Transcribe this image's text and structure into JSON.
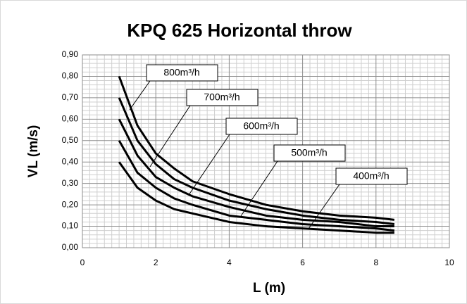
{
  "chart_data": {
    "type": "line",
    "title": "KPQ 625 Horizontal throw",
    "x_label": "L (m)",
    "y_label": "VL (m/s)",
    "x": [
      1,
      1.5,
      2,
      2.5,
      3,
      4,
      5,
      6,
      7,
      8,
      8.5
    ],
    "series": [
      {
        "name": "800m³/h",
        "color": "#000000",
        "values": [
          0.8,
          0.57,
          0.44,
          0.37,
          0.31,
          0.25,
          0.2,
          0.17,
          0.15,
          0.14,
          0.13
        ]
      },
      {
        "name": "700m³/h",
        "color": "#000000",
        "values": [
          0.7,
          0.5,
          0.39,
          0.32,
          0.28,
          0.22,
          0.18,
          0.15,
          0.13,
          0.12,
          0.11
        ]
      },
      {
        "name": "600m³/h",
        "color": "#000000",
        "values": [
          0.6,
          0.43,
          0.33,
          0.28,
          0.24,
          0.19,
          0.15,
          0.13,
          0.12,
          0.1,
          0.1
        ]
      },
      {
        "name": "500m³/h",
        "color": "#000000",
        "values": [
          0.5,
          0.35,
          0.28,
          0.23,
          0.2,
          0.15,
          0.13,
          0.11,
          0.1,
          0.09,
          0.08
        ]
      },
      {
        "name": "400m³/h",
        "color": "#000000",
        "values": [
          0.4,
          0.28,
          0.22,
          0.18,
          0.16,
          0.12,
          0.1,
          0.09,
          0.08,
          0.07,
          0.07
        ]
      }
    ],
    "xlim": [
      0,
      10
    ],
    "xticks": [
      0,
      2,
      4,
      6,
      8,
      10
    ],
    "ylim": [
      0,
      0.9
    ],
    "yticks": [
      {
        "value": 0,
        "label": "0,00"
      },
      {
        "value": 0.1,
        "label": "0,10"
      },
      {
        "value": 0.2,
        "label": "0,20"
      },
      {
        "value": 0.3,
        "label": "0,30"
      },
      {
        "value": 0.4,
        "label": "0,40"
      },
      {
        "value": 0.5,
        "label": "0,50"
      },
      {
        "value": 0.6,
        "label": "0,60"
      },
      {
        "value": 0.7,
        "label": "0,70"
      },
      {
        "value": 0.8,
        "label": "0,80"
      },
      {
        "value": 0.9,
        "label": "0,90"
      }
    ],
    "grid": true,
    "minor_grid": true
  }
}
